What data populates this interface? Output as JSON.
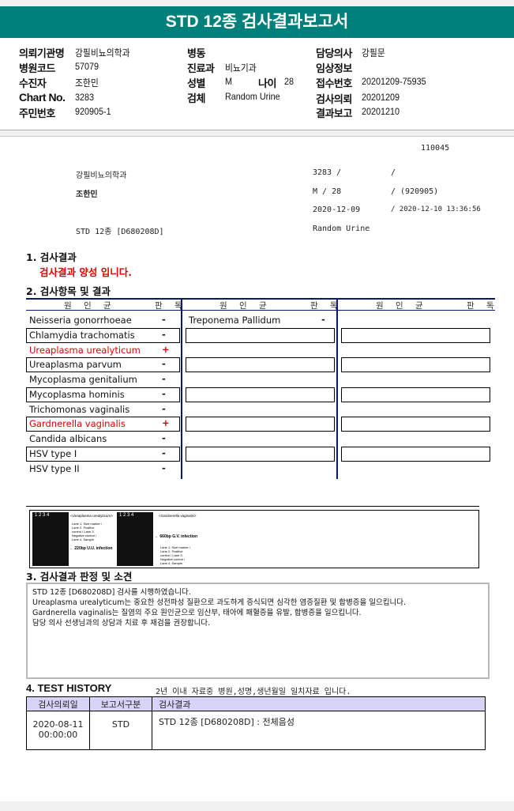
{
  "title": "STD 12종 검사결과보고서",
  "info": {
    "institution_label": "의뢰기관명",
    "institution": "강필비뇨의학과",
    "hospital_code_label": "병원코드",
    "hospital_code": "57079",
    "patient_label": "수진자",
    "patient": "조한민",
    "chart_label": "Chart No.",
    "chart": "3283",
    "resident_label": "주민번호",
    "resident": "920905-1",
    "ward_label": "병동",
    "dept_label": "진료과",
    "dept": "비뇨기과",
    "sex_label": "성별",
    "sex": "M",
    "age_label": "나이",
    "age": "28",
    "specimen_label": "검체",
    "specimen": "Random Urine",
    "doctor_label": "담당의사",
    "doctor": "강필문",
    "clinical_label": "임상정보",
    "receipt_label": "접수번호",
    "receipt": "20201209-75935",
    "request_label": "검사의뢰",
    "request": "20201209",
    "report_label": "결과보고",
    "report": "20201210"
  },
  "summary": {
    "id": "110045",
    "institution": "강필비뇨의학과",
    "chart": "3283 / ",
    "name": "조한민",
    "sex_age": "M / 28",
    "birth": "/ (920905)",
    "date1": "2020-12-09",
    "date2": "/ 2020-12-10 13:36:56",
    "test": "STD 12종 [D680208D]",
    "specimen": "Random Urine"
  },
  "section1": {
    "title": "1. 검사결과",
    "result": "검사결과 양성 입니다."
  },
  "section2": {
    "title": "2. 검사항목 및 결과",
    "col_organism": "원 인 균",
    "col_result": "판 독",
    "col1": [
      {
        "name": "Neisseria gonorrhoeae",
        "result": "-"
      },
      {
        "name": "Chlamydia trachomatis",
        "result": "-"
      },
      {
        "name": "Ureaplasma urealyticum",
        "result": "+"
      },
      {
        "name": "Ureaplasma parvum",
        "result": "-"
      },
      {
        "name": "Mycoplasma genitalium",
        "result": "-"
      },
      {
        "name": "Mycoplasma hominis",
        "result": "-"
      },
      {
        "name": "Trichomonas vaginalis",
        "result": "-"
      },
      {
        "name": "Gardnerella vaginalis",
        "result": "+"
      },
      {
        "name": "Candida albicans",
        "result": "-"
      },
      {
        "name": "HSV type I",
        "result": "-"
      },
      {
        "name": "HSV type II",
        "result": "-"
      }
    ],
    "col2": [
      {
        "name": "Treponema Pallidum",
        "result": "-"
      }
    ]
  },
  "gel": {
    "lanes": "1 2 3 4",
    "uu_title": "<Ureaplasma urealyticum>",
    "uu_legend": "Lane 1. Size marker / Lane 2. Positive control / Lane 3. Negative control / Lane 4. Sample",
    "uu_band": "← 220bp U.U. infection",
    "gv_title": "<Gardnerella vaginalis>",
    "gv_band": "← 660bp G.V. infection",
    "gv_legend": "Lane 1. Size marker / Lane 2. Positive control / Lane 3. Negative control / Lane 4. Sample"
  },
  "section3": {
    "title": "3. 검사결과 판정 및 소견",
    "lines": [
      "STD 12종 [D680208D] 검사를 시행하였습니다.",
      "Ureaplasma urealyticum는 중요한 성전파성 질환으로 과도하게 증식되면 심각한 염증질환 및 합병증을 일으킵니다.",
      "Gardnerella vaginalis는 질염의 주요 원인균으로 임산부, 태아에 패혈증을 유발, 합병증을 일으킵니다.",
      "담당 의사 선생님과의 상담과 치료 후 재검을 권장합니다."
    ]
  },
  "section4": {
    "title": "4. TEST HISTORY",
    "note": "2년 이내 자료중 병원,성명,생년월일 일치자료 입니다.",
    "headers": [
      "검사의뢰일",
      "보고서구분",
      "검사결과"
    ],
    "rows": [
      {
        "date": "2020-08-11",
        "time": "00:00:00",
        "type": "STD",
        "result": "STD 12종 [D680208D] : 전체음성"
      }
    ]
  },
  "colors": {
    "header": "#00807a",
    "positive": "#e00000",
    "table_rule": "#0a1a6b",
    "history_header": "#d8d4f8"
  }
}
